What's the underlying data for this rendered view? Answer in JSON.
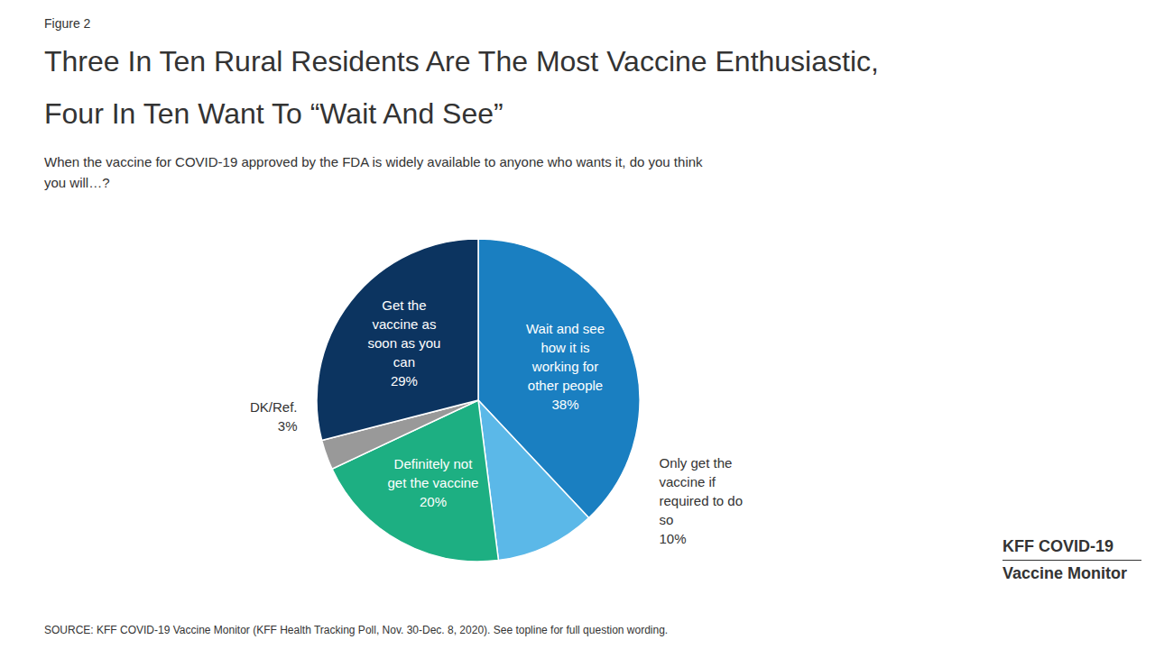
{
  "chart_data": {
    "type": "pie",
    "figure_label": "Figure 2",
    "title": "Three In Ten Rural Residents Are The Most Vaccine Enthusiastic,\nFour In Ten Want To “Wait And See”",
    "subtitle": "When the vaccine for COVID-19 approved by the FDA is widely available to anyone who wants it, do you think\nyou will…?",
    "source": "SOURCE: KFF COVID-19 Vaccine Monitor (KFF Health Tracking Poll, Nov. 30-Dec. 8, 2020). See topline for full question wording.",
    "annotations": [
      "KFF COVID-19",
      "Vaccine Monitor"
    ],
    "categories": [
      "Wait and see\nhow it is\nworking for\nother people",
      "Only get the\nvaccine if\nrequired to do\nso",
      "Definitely not\nget the vaccine",
      "DK/Ref.",
      "Get the\nvaccine as\nsoon as you\ncan"
    ],
    "values": [
      38,
      10,
      20,
      3,
      29
    ],
    "value_labels": [
      "38%",
      "10%",
      "20%",
      "3%",
      "29%"
    ],
    "colors": [
      "#1A7FC1",
      "#5BB8E8",
      "#1DAF82",
      "#999999",
      "#0C3460"
    ],
    "data_labels": true
  }
}
